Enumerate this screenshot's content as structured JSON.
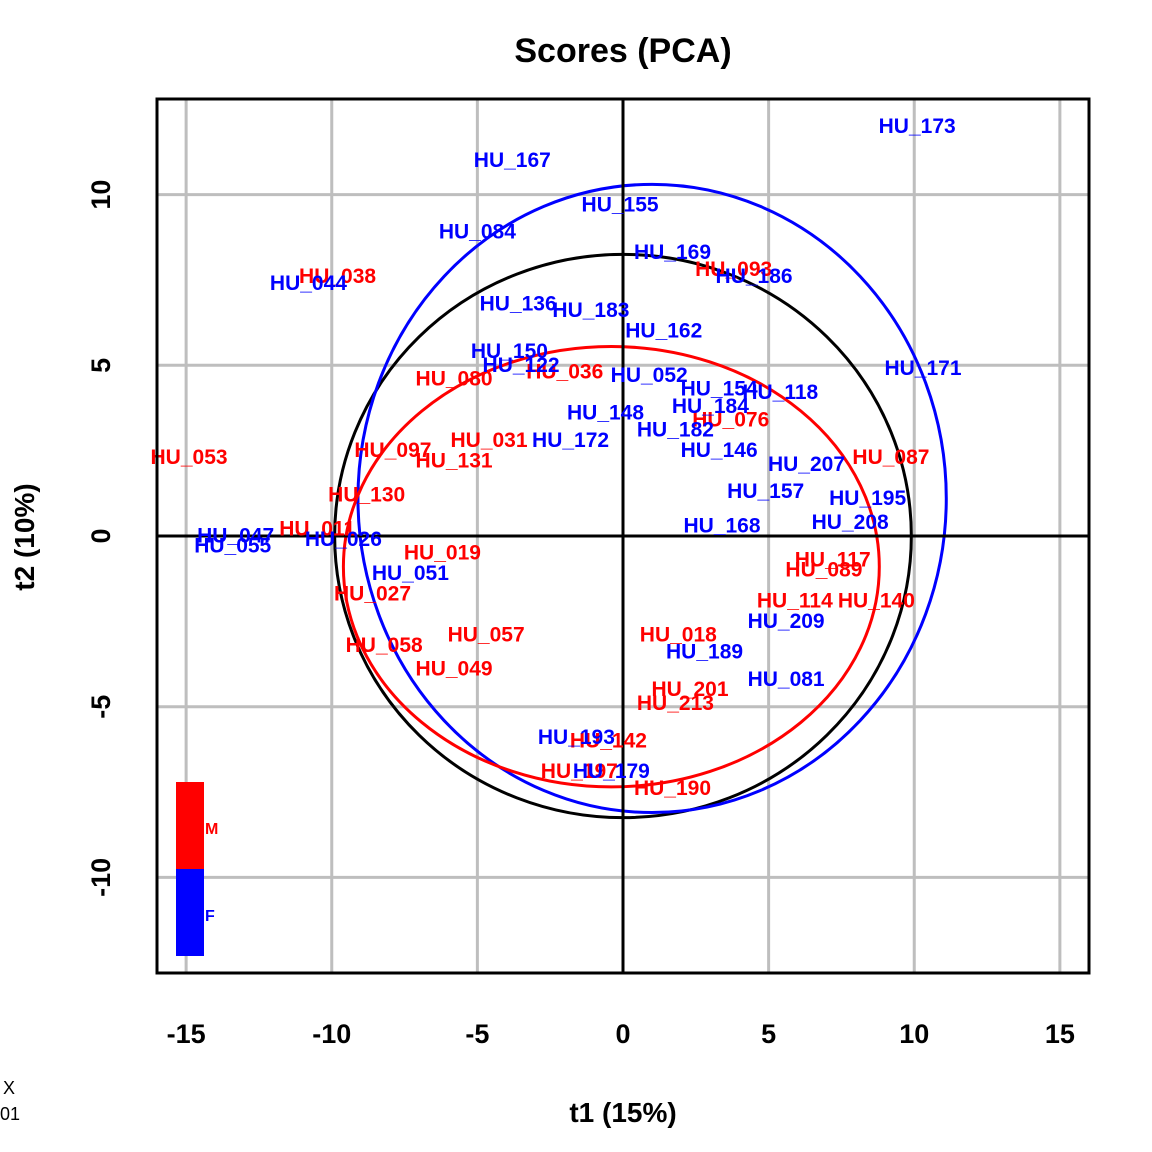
{
  "chart_data": {
    "type": "scatter",
    "title": "Scores (PCA)",
    "xlabel": "t1 (15%)",
    "ylabel": "t2 (10%)",
    "xlim": [
      -16,
      16
    ],
    "ylim": [
      -12.8,
      12.8
    ],
    "xticks": [
      -15,
      -10,
      -5,
      0,
      5,
      10,
      15
    ],
    "yticks": [
      -10,
      -5,
      0,
      5,
      10
    ],
    "grid": true,
    "colors": {
      "M": "#ff0000",
      "F": "#0000ff",
      "total": "#000000"
    },
    "legend": {
      "placement": "bottom-left",
      "entries": [
        {
          "name": "M",
          "color": "#ff0000"
        },
        {
          "name": "F",
          "color": "#0000ff"
        }
      ]
    },
    "ellipses": [
      {
        "group": "all",
        "color": "#000000",
        "center": [
          0,
          0
        ],
        "rx": 9.9,
        "ry": 8.25
      },
      {
        "group": "F",
        "color": "#0000ff",
        "center": [
          1.0,
          1.1
        ],
        "rx": 10.1,
        "ry": 9.2
      },
      {
        "group": "M",
        "color": "#ff0000",
        "center": [
          -0.4,
          -0.9
        ],
        "rx": 9.2,
        "ry": 6.45
      }
    ],
    "series": [
      {
        "name": "M",
        "points": [
          {
            "label": "HU_038",
            "x": -9.8,
            "y": 7.6
          },
          {
            "label": "HU_053",
            "x": -14.9,
            "y": 2.3
          },
          {
            "label": "HU_093",
            "x": 3.8,
            "y": 7.8
          },
          {
            "label": "HU_036",
            "x": -2.0,
            "y": 4.8
          },
          {
            "label": "HU_080",
            "x": -5.8,
            "y": 4.6
          },
          {
            "label": "HU_076",
            "x": 3.7,
            "y": 3.4
          },
          {
            "label": "HU_097",
            "x": -7.9,
            "y": 2.5
          },
          {
            "label": "HU_131",
            "x": -5.8,
            "y": 2.2
          },
          {
            "label": "HU_031",
            "x": -4.6,
            "y": 2.8
          },
          {
            "label": "HU_087",
            "x": 9.2,
            "y": 2.3
          },
          {
            "label": "HU_130",
            "x": -8.8,
            "y": 1.2
          },
          {
            "label": "HU_011",
            "x": -10.5,
            "y": 0.2
          },
          {
            "label": "HU_019",
            "x": -6.2,
            "y": -0.5
          },
          {
            "label": "HU_117",
            "x": 7.2,
            "y": -0.7
          },
          {
            "label": "HU_089",
            "x": 6.9,
            "y": -1.0
          },
          {
            "label": "HU_140",
            "x": 8.7,
            "y": -1.9
          },
          {
            "label": "HU_114",
            "x": 5.9,
            "y": -1.9
          },
          {
            "label": "HU_027",
            "x": -8.6,
            "y": -1.7
          },
          {
            "label": "HU_057",
            "x": -4.7,
            "y": -2.9
          },
          {
            "label": "HU_058",
            "x": -8.2,
            "y": -3.2
          },
          {
            "label": "HU_049",
            "x": -5.8,
            "y": -3.9
          },
          {
            "label": "HU_018",
            "x": 1.9,
            "y": -2.9
          },
          {
            "label": "HU_201",
            "x": 2.3,
            "y": -4.5
          },
          {
            "label": "HU_213",
            "x": 1.8,
            "y": -4.9
          },
          {
            "label": "HU_142",
            "x": -0.5,
            "y": -6.0
          },
          {
            "label": "HU_197",
            "x": -1.5,
            "y": -6.9
          },
          {
            "label": "HU_190",
            "x": 1.7,
            "y": -7.4
          }
        ]
      },
      {
        "name": "F",
        "points": [
          {
            "label": "HU_173",
            "x": 10.1,
            "y": 12.0
          },
          {
            "label": "HU_167",
            "x": -3.8,
            "y": 11.0
          },
          {
            "label": "HU_155",
            "x": -0.1,
            "y": 9.7
          },
          {
            "label": "HU_084",
            "x": -5.0,
            "y": 8.9
          },
          {
            "label": "HU_169",
            "x": 1.7,
            "y": 8.3
          },
          {
            "label": "HU_186",
            "x": 4.5,
            "y": 7.6
          },
          {
            "label": "HU_044",
            "x": -10.8,
            "y": 7.4
          },
          {
            "label": "HU_136",
            "x": -3.6,
            "y": 6.8
          },
          {
            "label": "HU_183",
            "x": -1.1,
            "y": 6.6
          },
          {
            "label": "HU_162",
            "x": 1.4,
            "y": 6.0
          },
          {
            "label": "HU_150",
            "x": -3.9,
            "y": 5.4
          },
          {
            "label": "HU_122",
            "x": -3.5,
            "y": 5.0
          },
          {
            "label": "HU_052",
            "x": 0.9,
            "y": 4.7
          },
          {
            "label": "HU_171",
            "x": 10.3,
            "y": 4.9
          },
          {
            "label": "HU_154",
            "x": 3.3,
            "y": 4.3
          },
          {
            "label": "HU_118",
            "x": 5.4,
            "y": 4.2
          },
          {
            "label": "HU_184",
            "x": 3.0,
            "y": 3.8
          },
          {
            "label": "HU_148",
            "x": -0.6,
            "y": 3.6
          },
          {
            "label": "HU_182",
            "x": 1.8,
            "y": 3.1
          },
          {
            "label": "HU_172",
            "x": -1.8,
            "y": 2.8
          },
          {
            "label": "HU_146",
            "x": 3.3,
            "y": 2.5
          },
          {
            "label": "HU_207",
            "x": 6.3,
            "y": 2.1
          },
          {
            "label": "HU_157",
            "x": 4.9,
            "y": 1.3
          },
          {
            "label": "HU_195",
            "x": 8.4,
            "y": 1.1
          },
          {
            "label": "HU_208",
            "x": 7.8,
            "y": 0.4
          },
          {
            "label": "HU_168",
            "x": 3.4,
            "y": 0.3
          },
          {
            "label": "HU_047",
            "x": -13.3,
            "y": 0.0
          },
          {
            "label": "HU_055",
            "x": -13.4,
            "y": -0.3
          },
          {
            "label": "HU_026",
            "x": -9.6,
            "y": -0.1
          },
          {
            "label": "HU_051",
            "x": -7.3,
            "y": -1.1
          },
          {
            "label": "HU_209",
            "x": 5.6,
            "y": -2.5
          },
          {
            "label": "HU_189",
            "x": 2.8,
            "y": -3.4
          },
          {
            "label": "HU_081",
            "x": 5.6,
            "y": -4.2
          },
          {
            "label": "HU_193",
            "x": -1.6,
            "y": -5.9
          },
          {
            "label": "HU_179",
            "x": -0.4,
            "y": -6.9
          }
        ]
      }
    ]
  },
  "corner": {
    "line1": "X",
    "line2": "01"
  }
}
